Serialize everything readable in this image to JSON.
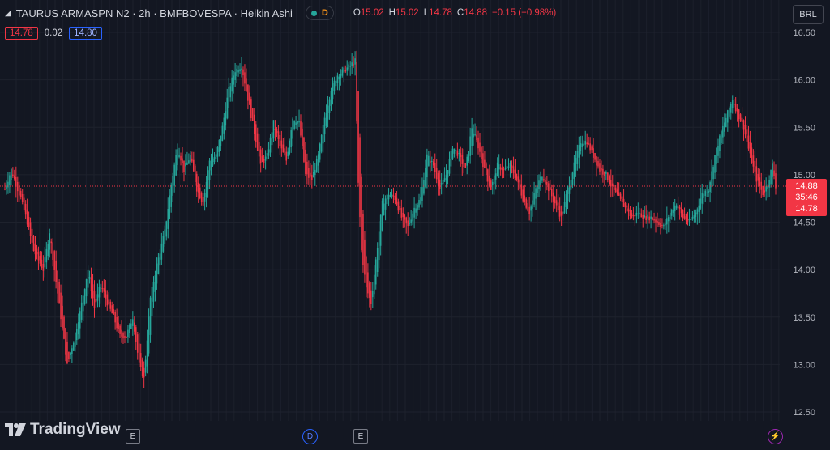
{
  "header": {
    "title": "TAURUS ARMASPN N2 · 2h · BMFBOVESPA · Heikin Ashi",
    "badge": "D",
    "ohlc": [
      {
        "k": "O",
        "v": "15.02"
      },
      {
        "k": "H",
        "v": "15.02"
      },
      {
        "k": "L",
        "v": "14.78"
      },
      {
        "k": "C",
        "v": "14.88"
      },
      {
        "k": "",
        "v": "−0.15 (−0.98%)"
      }
    ]
  },
  "quote": {
    "bid": "14.78",
    "spread": "0.02",
    "ask": "14.80"
  },
  "currency": "BRL",
  "last_price": {
    "price": "14.88",
    "countdown": "35:46",
    "low": "14.78"
  },
  "brand": "TradingView",
  "events": [
    {
      "label": "E",
      "type": "box"
    },
    {
      "label": "D",
      "type": "dividend"
    },
    {
      "label": "E",
      "type": "box"
    },
    {
      "label": "⚡",
      "type": "bolt"
    }
  ],
  "colors": {
    "up": "#26a69a",
    "down": "#f23645",
    "background": "#131722"
  },
  "chart_data": {
    "type": "candlestick",
    "style": "Heikin Ashi",
    "interval": "2h",
    "ylim": [
      12.45,
      16.6
    ],
    "y_ticks": [
      "16.50",
      "16.00",
      "15.50",
      "15.00",
      "14.50",
      "14.00",
      "13.50",
      "13.00",
      "12.50"
    ],
    "last_close": 14.88,
    "path": [
      {
        "i": 0,
        "v": 14.85
      },
      {
        "i": 4,
        "v": 15.05
      },
      {
        "i": 10,
        "v": 14.75
      },
      {
        "i": 14,
        "v": 14.5
      },
      {
        "i": 18,
        "v": 14.2
      },
      {
        "i": 24,
        "v": 14.0
      },
      {
        "i": 28,
        "v": 14.4
      },
      {
        "i": 31,
        "v": 14.0
      },
      {
        "i": 35,
        "v": 13.5
      },
      {
        "i": 39,
        "v": 13.0
      },
      {
        "i": 43,
        "v": 13.25
      },
      {
        "i": 47,
        "v": 13.55
      },
      {
        "i": 52,
        "v": 14.0
      },
      {
        "i": 56,
        "v": 13.6
      },
      {
        "i": 60,
        "v": 13.85
      },
      {
        "i": 64,
        "v": 13.65
      },
      {
        "i": 68,
        "v": 13.5
      },
      {
        "i": 72,
        "v": 13.3
      },
      {
        "i": 76,
        "v": 13.3
      },
      {
        "i": 80,
        "v": 13.5
      },
      {
        "i": 84,
        "v": 13.0
      },
      {
        "i": 87,
        "v": 12.85
      },
      {
        "i": 91,
        "v": 13.7
      },
      {
        "i": 95,
        "v": 14.05
      },
      {
        "i": 100,
        "v": 14.4
      },
      {
        "i": 104,
        "v": 14.9
      },
      {
        "i": 108,
        "v": 15.3
      },
      {
        "i": 112,
        "v": 15.05
      },
      {
        "i": 116,
        "v": 15.2
      },
      {
        "i": 120,
        "v": 14.85
      },
      {
        "i": 124,
        "v": 14.7
      },
      {
        "i": 128,
        "v": 15.15
      },
      {
        "i": 132,
        "v": 15.2
      },
      {
        "i": 136,
        "v": 15.5
      },
      {
        "i": 140,
        "v": 15.9
      },
      {
        "i": 144,
        "v": 16.1
      },
      {
        "i": 148,
        "v": 16.15
      },
      {
        "i": 152,
        "v": 15.8
      },
      {
        "i": 156,
        "v": 15.45
      },
      {
        "i": 160,
        "v": 15.1
      },
      {
        "i": 164,
        "v": 15.2
      },
      {
        "i": 168,
        "v": 15.55
      },
      {
        "i": 172,
        "v": 15.3
      },
      {
        "i": 176,
        "v": 15.15
      },
      {
        "i": 180,
        "v": 15.6
      },
      {
        "i": 184,
        "v": 15.55
      },
      {
        "i": 188,
        "v": 15.0
      },
      {
        "i": 192,
        "v": 14.95
      },
      {
        "i": 196,
        "v": 15.2
      },
      {
        "i": 200,
        "v": 15.6
      },
      {
        "i": 204,
        "v": 15.9
      },
      {
        "i": 208,
        "v": 16.05
      },
      {
        "i": 212,
        "v": 16.1
      },
      {
        "i": 216,
        "v": 16.15
      },
      {
        "i": 219,
        "v": 16.2
      },
      {
        "i": 221,
        "v": 14.9
      },
      {
        "i": 223,
        "v": 14.2
      },
      {
        "i": 226,
        "v": 13.8
      },
      {
        "i": 229,
        "v": 13.65
      },
      {
        "i": 232,
        "v": 14.1
      },
      {
        "i": 236,
        "v": 14.7
      },
      {
        "i": 240,
        "v": 14.8
      },
      {
        "i": 244,
        "v": 14.75
      },
      {
        "i": 248,
        "v": 14.55
      },
      {
        "i": 252,
        "v": 14.45
      },
      {
        "i": 256,
        "v": 14.65
      },
      {
        "i": 260,
        "v": 14.75
      },
      {
        "i": 264,
        "v": 15.2
      },
      {
        "i": 268,
        "v": 15.1
      },
      {
        "i": 272,
        "v": 14.85
      },
      {
        "i": 276,
        "v": 15.0
      },
      {
        "i": 280,
        "v": 15.3
      },
      {
        "i": 284,
        "v": 15.2
      },
      {
        "i": 288,
        "v": 15.05
      },
      {
        "i": 292,
        "v": 15.5
      },
      {
        "i": 296,
        "v": 15.3
      },
      {
        "i": 300,
        "v": 15.05
      },
      {
        "i": 304,
        "v": 14.85
      },
      {
        "i": 308,
        "v": 15.1
      },
      {
        "i": 312,
        "v": 15.05
      },
      {
        "i": 316,
        "v": 15.1
      },
      {
        "i": 320,
        "v": 14.95
      },
      {
        "i": 324,
        "v": 14.75
      },
      {
        "i": 328,
        "v": 14.6
      },
      {
        "i": 332,
        "v": 14.85
      },
      {
        "i": 336,
        "v": 15.0
      },
      {
        "i": 340,
        "v": 14.85
      },
      {
        "i": 344,
        "v": 14.7
      },
      {
        "i": 348,
        "v": 14.55
      },
      {
        "i": 352,
        "v": 14.85
      },
      {
        "i": 356,
        "v": 15.1
      },
      {
        "i": 360,
        "v": 15.35
      },
      {
        "i": 364,
        "v": 15.35
      },
      {
        "i": 368,
        "v": 15.2
      },
      {
        "i": 372,
        "v": 15.05
      },
      {
        "i": 376,
        "v": 15.0
      },
      {
        "i": 380,
        "v": 14.85
      },
      {
        "i": 384,
        "v": 14.75
      },
      {
        "i": 388,
        "v": 14.65
      },
      {
        "i": 392,
        "v": 14.55
      },
      {
        "i": 396,
        "v": 14.6
      },
      {
        "i": 400,
        "v": 14.55
      },
      {
        "i": 404,
        "v": 14.55
      },
      {
        "i": 408,
        "v": 14.5
      },
      {
        "i": 412,
        "v": 14.45
      },
      {
        "i": 416,
        "v": 14.6
      },
      {
        "i": 420,
        "v": 14.7
      },
      {
        "i": 424,
        "v": 14.55
      },
      {
        "i": 428,
        "v": 14.5
      },
      {
        "i": 432,
        "v": 14.6
      },
      {
        "i": 436,
        "v": 14.8
      },
      {
        "i": 440,
        "v": 14.85
      },
      {
        "i": 444,
        "v": 15.2
      },
      {
        "i": 448,
        "v": 15.45
      },
      {
        "i": 452,
        "v": 15.65
      },
      {
        "i": 455,
        "v": 15.8
      },
      {
        "i": 458,
        "v": 15.65
      },
      {
        "i": 462,
        "v": 15.5
      },
      {
        "i": 466,
        "v": 15.2
      },
      {
        "i": 470,
        "v": 14.95
      },
      {
        "i": 474,
        "v": 14.8
      },
      {
        "i": 477,
        "v": 14.9
      },
      {
        "i": 480,
        "v": 15.1
      },
      {
        "i": 482,
        "v": 14.88
      }
    ],
    "n_bars": 483
  }
}
